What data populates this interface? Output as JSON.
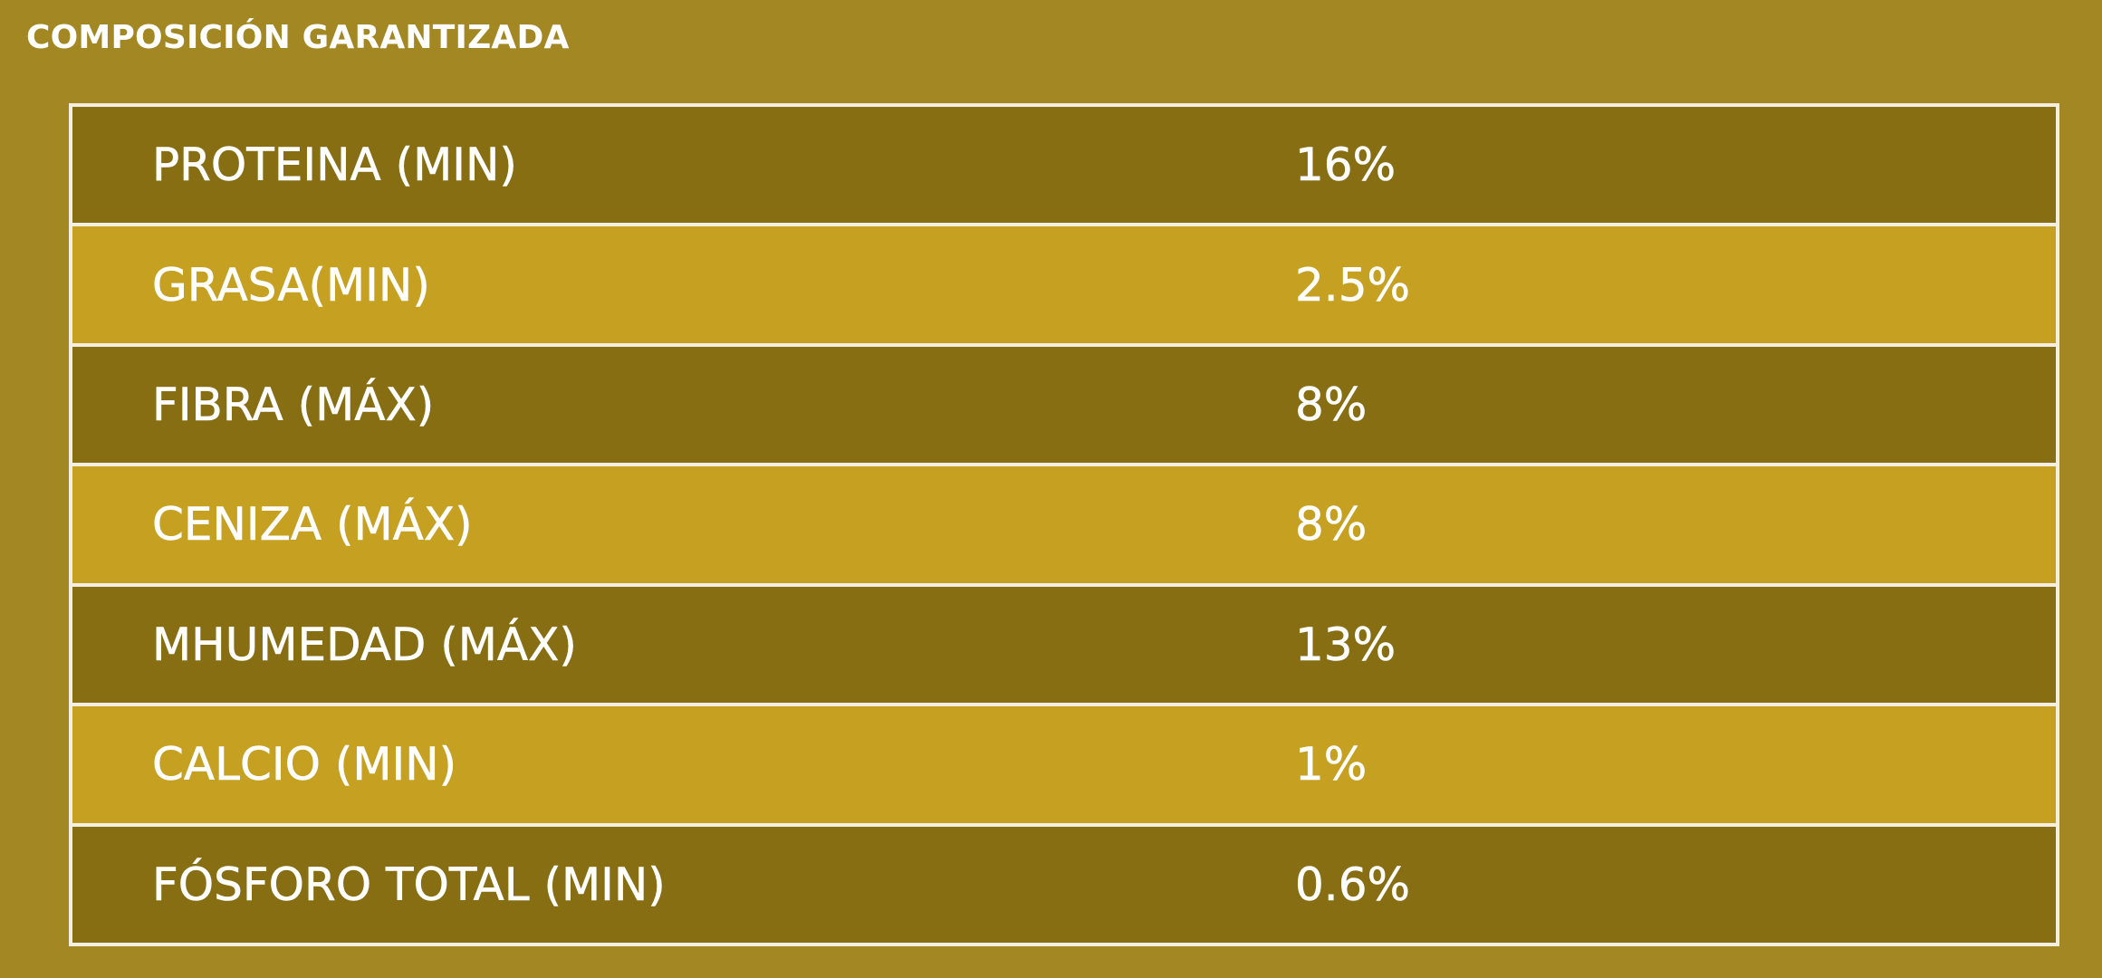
{
  "title": "COMPOSICIÓN GARANTIZADA",
  "rows": [
    {
      "label": "PROTEINA (MIN)",
      "value": "16%"
    },
    {
      "label": "GRASA(MIN)",
      "value": "2.5%"
    },
    {
      "label": "FIBRA (MÁX)",
      "value": "8%"
    },
    {
      "label": "CENIZA (MÁX)",
      "value": "8%"
    },
    {
      "label": "MHUMEDAD (MÁX)",
      "value": "13%"
    },
    {
      "label": "CALCIO (MIN)",
      "value": "1%"
    },
    {
      "label": "FÓSFORO TOTAL (MIN)",
      "value": "0.6%"
    }
  ],
  "colors": {
    "background": "#a38723",
    "row_dark": "#876e12",
    "row_light": "#c6a020",
    "border": "#f4efe2",
    "text": "#ffffff"
  }
}
